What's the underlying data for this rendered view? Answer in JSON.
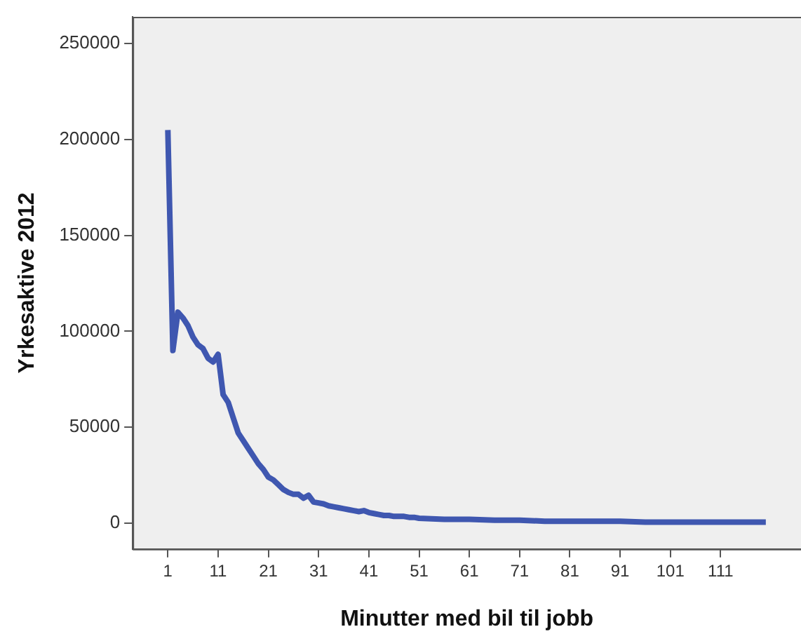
{
  "chart_data": {
    "type": "line",
    "xlabel": "Minutter med bil til jobb",
    "ylabel": "Yrkesaktive 2012",
    "x": [
      1,
      2,
      3,
      4,
      5,
      6,
      7,
      8,
      9,
      10,
      11,
      12,
      13,
      14,
      15,
      16,
      17,
      18,
      19,
      20,
      21,
      22,
      23,
      24,
      25,
      26,
      27,
      28,
      29,
      30,
      31,
      32,
      33,
      34,
      35,
      36,
      37,
      38,
      39,
      40,
      41,
      42,
      43,
      44,
      45,
      46,
      47,
      48,
      49,
      50,
      51,
      56,
      61,
      66,
      71,
      76,
      81,
      86,
      91,
      96,
      101,
      106,
      111,
      116,
      120
    ],
    "series": [
      {
        "color": "#3f57b0",
        "values": [
          205000,
          90000,
          110000,
          107000,
          103000,
          97000,
          93000,
          91000,
          86000,
          84000,
          88000,
          67000,
          63000,
          55000,
          47000,
          43000,
          39000,
          35000,
          31000,
          28000,
          24000,
          22500,
          20000,
          17500,
          16000,
          15000,
          15000,
          13000,
          14500,
          11000,
          10500,
          10000,
          9000,
          8500,
          8000,
          7500,
          7000,
          6500,
          6000,
          6500,
          5500,
          5000,
          4500,
          4000,
          4000,
          3500,
          3500,
          3500,
          3000,
          3000,
          2500,
          2000,
          2000,
          1500,
          1500,
          1000,
          1000,
          1000,
          1000,
          500,
          500,
          500,
          500,
          500,
          500
        ]
      }
    ],
    "xlim": [
      -6,
      127
    ],
    "xticks": [
      1,
      11,
      21,
      31,
      41,
      51,
      61,
      71,
      81,
      91,
      101,
      111
    ],
    "ylim": [
      -13500,
      264000
    ],
    "yticks": [
      0,
      50000,
      100000,
      150000,
      200000,
      250000
    ],
    "grid": false,
    "legend": false,
    "marker": "none",
    "line_style": "solid"
  }
}
